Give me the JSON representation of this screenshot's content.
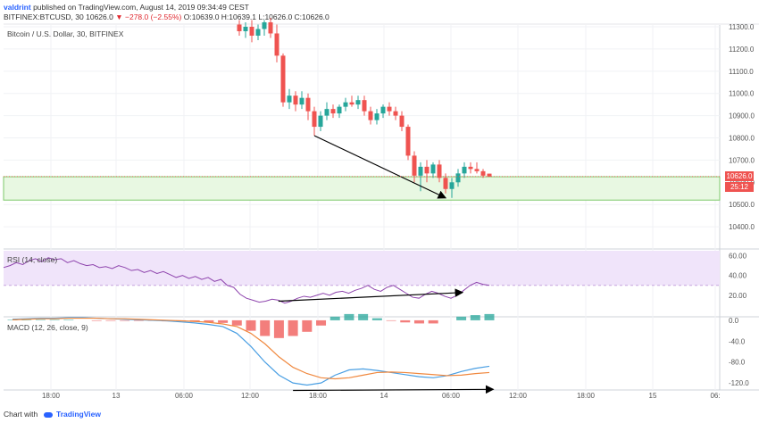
{
  "header": {
    "user": "valdrint",
    "published": "published on TradingView.com, August 14, 2019 09:34:49 CEST",
    "symbol": "BITFINEX:BTCUSD, 30",
    "last": "10626.0",
    "change": "▼ −278.0 (−2.55%)",
    "ohlc": "O:10639.0 H:10639.1 L:10626.0 C:10626.0"
  },
  "price_title": "Bitcoin / U.S. Dollar, 30, BITFINEX",
  "rsi_title": "RSI (14, close)",
  "macd_title": "MACD (12, 26, close, 9)",
  "price_badge": "10626.0",
  "timer_badge": "25:12",
  "footer": {
    "prefix": "Chart with",
    "brand": "TradingView"
  },
  "colors": {
    "up": "#26a69a",
    "down": "#ef5350",
    "support_zone": "#e8f8e2",
    "support_border": "#7dc96a",
    "rsi_band": "#f0e4fa",
    "rsi_line": "#8e44ad",
    "macd_line": "#4a9fe3",
    "signal_line": "#f0883e",
    "arrow": "#000000"
  },
  "chart_data": [
    {
      "type": "candlestick",
      "title": "Bitcoin / U.S. Dollar, 30, BITFINEX",
      "ylim": [
        10300,
        11300
      ],
      "y_ticks": [
        11300,
        11200,
        11100,
        11000,
        10900,
        10800,
        10700,
        10600,
        10500,
        10400
      ],
      "x_ticks": [
        "18:00",
        "13",
        "06:00",
        "12:00",
        "18:00",
        "14",
        "06:00",
        "12:00",
        "18:00",
        "15",
        "06:"
      ],
      "support_zone": [
        10520,
        10625
      ],
      "candles": [
        {
          "o": 11310,
          "h": 11330,
          "l": 11260,
          "c": 11280
        },
        {
          "o": 11280,
          "h": 11320,
          "l": 11250,
          "c": 11300
        },
        {
          "o": 11300,
          "h": 11330,
          "l": 11230,
          "c": 11260
        },
        {
          "o": 11260,
          "h": 11310,
          "l": 11240,
          "c": 11290
        },
        {
          "o": 11290,
          "h": 11330,
          "l": 11260,
          "c": 11320
        },
        {
          "o": 11320,
          "h": 11340,
          "l": 11250,
          "c": 11270
        },
        {
          "o": 11270,
          "h": 11310,
          "l": 11140,
          "c": 11170
        },
        {
          "o": 11170,
          "h": 11180,
          "l": 10940,
          "c": 10960
        },
        {
          "o": 10960,
          "h": 11020,
          "l": 10930,
          "c": 10990
        },
        {
          "o": 10990,
          "h": 11010,
          "l": 10920,
          "c": 10950
        },
        {
          "o": 10950,
          "h": 11010,
          "l": 10930,
          "c": 10980
        },
        {
          "o": 10980,
          "h": 11000,
          "l": 10880,
          "c": 10920
        },
        {
          "o": 10920,
          "h": 10940,
          "l": 10810,
          "c": 10850
        },
        {
          "o": 10850,
          "h": 10920,
          "l": 10830,
          "c": 10900
        },
        {
          "o": 10900,
          "h": 10960,
          "l": 10880,
          "c": 10930
        },
        {
          "o": 10930,
          "h": 10950,
          "l": 10890,
          "c": 10910
        },
        {
          "o": 10910,
          "h": 10950,
          "l": 10890,
          "c": 10940
        },
        {
          "o": 10940,
          "h": 10980,
          "l": 10920,
          "c": 10960
        },
        {
          "o": 10960,
          "h": 10990,
          "l": 10940,
          "c": 10950
        },
        {
          "o": 10950,
          "h": 10990,
          "l": 10930,
          "c": 10970
        },
        {
          "o": 10970,
          "h": 10990,
          "l": 10900,
          "c": 10920
        },
        {
          "o": 10920,
          "h": 10940,
          "l": 10860,
          "c": 10880
        },
        {
          "o": 10880,
          "h": 10930,
          "l": 10860,
          "c": 10910
        },
        {
          "o": 10910,
          "h": 10950,
          "l": 10890,
          "c": 10940
        },
        {
          "o": 10940,
          "h": 10960,
          "l": 10900,
          "c": 10920
        },
        {
          "o": 10920,
          "h": 10940,
          "l": 10880,
          "c": 10900
        },
        {
          "o": 10900,
          "h": 10920,
          "l": 10830,
          "c": 10850
        },
        {
          "o": 10850,
          "h": 10860,
          "l": 10700,
          "c": 10720
        },
        {
          "o": 10720,
          "h": 10740,
          "l": 10600,
          "c": 10630
        },
        {
          "o": 10630,
          "h": 10690,
          "l": 10560,
          "c": 10670
        },
        {
          "o": 10670,
          "h": 10700,
          "l": 10600,
          "c": 10640
        },
        {
          "o": 10640,
          "h": 10690,
          "l": 10620,
          "c": 10680
        },
        {
          "o": 10680,
          "h": 10700,
          "l": 10600,
          "c": 10620
        },
        {
          "o": 10620,
          "h": 10640,
          "l": 10550,
          "c": 10570
        },
        {
          "o": 10570,
          "h": 10620,
          "l": 10530,
          "c": 10600
        },
        {
          "o": 10600,
          "h": 10660,
          "l": 10580,
          "c": 10640
        },
        {
          "o": 10640,
          "h": 10690,
          "l": 10620,
          "c": 10670
        },
        {
          "o": 10670,
          "h": 10690,
          "l": 10640,
          "c": 10660
        },
        {
          "o": 10660,
          "h": 10690,
          "l": 10640,
          "c": 10650
        },
        {
          "o": 10650,
          "h": 10660,
          "l": 10620,
          "c": 10630
        },
        {
          "o": 10639,
          "h": 10639.1,
          "l": 10626,
          "c": 10626
        }
      ],
      "annotation": {
        "type": "arrow",
        "from": {
          "candle": 12,
          "price": 10810
        },
        "to": {
          "candle": 33,
          "price": 10530
        }
      }
    },
    {
      "type": "line",
      "title": "RSI (14, close)",
      "ylim": [
        0,
        65
      ],
      "y_ticks": [
        60,
        40,
        20
      ],
      "band": [
        30,
        70
      ],
      "series": [
        {
          "values": [
            48,
            50,
            53,
            51,
            55,
            57,
            54,
            58,
            56,
            57,
            53,
            55,
            52,
            50,
            51,
            48,
            49,
            47,
            50,
            48,
            45,
            46,
            43,
            45,
            42,
            44,
            41,
            38,
            40,
            37,
            39,
            36,
            38,
            34,
            36,
            30,
            28,
            21,
            17,
            15,
            13,
            14,
            16,
            15,
            12,
            14,
            17,
            19,
            18,
            20,
            22,
            20,
            23,
            24,
            22,
            25,
            27,
            30,
            26,
            24,
            28,
            30,
            26,
            22,
            18,
            17,
            21,
            24,
            22,
            19,
            17,
            20,
            25,
            30,
            33,
            31,
            30
          ]
        }
      ],
      "annotation": {
        "type": "arrow",
        "from": {
          "index": 43,
          "value": 14
        },
        "to": {
          "index": 76,
          "value": 21
        }
      }
    },
    {
      "type": "line",
      "title": "MACD (12, 26, close, 9)",
      "ylim": [
        -130,
        5
      ],
      "y_ticks": [
        0,
        -40,
        -80,
        -120
      ],
      "series": [
        {
          "values": [
            2,
            3,
            4,
            4,
            5,
            5,
            4,
            3,
            2,
            1,
            0,
            -1,
            -3,
            -5,
            -8,
            -12,
            -25,
            -50,
            -80,
            -105,
            -120,
            -124,
            -120,
            -105,
            -95,
            -93,
            -96,
            -100,
            -104,
            -108,
            -110,
            -106,
            -98,
            -92,
            -88
          ]
        },
        {
          "values": [
            1,
            2,
            3,
            3,
            4,
            4,
            4,
            3,
            3,
            2,
            1,
            0,
            -1,
            -2,
            -4,
            -7,
            -12,
            -25,
            -45,
            -70,
            -90,
            -102,
            -110,
            -112,
            -110,
            -105,
            -100,
            -99,
            -100,
            -102,
            -104,
            -106,
            -105,
            -102,
            -100
          ]
        }
      ],
      "histogram": [
        1,
        1,
        1,
        1,
        1,
        0,
        -1,
        -1,
        -1,
        -1,
        -1,
        -2,
        -2,
        -3,
        -4,
        -5,
        -10,
        -20,
        -30,
        -34,
        -30,
        -22,
        -10,
        7,
        12,
        12,
        4,
        -1,
        -4,
        -6,
        -6,
        0,
        7,
        10,
        12
      ],
      "annotation": {
        "type": "arrow",
        "from": {
          "index": 20,
          "value": -124
        },
        "to": {
          "index": 33,
          "value": -122
        }
      }
    }
  ]
}
